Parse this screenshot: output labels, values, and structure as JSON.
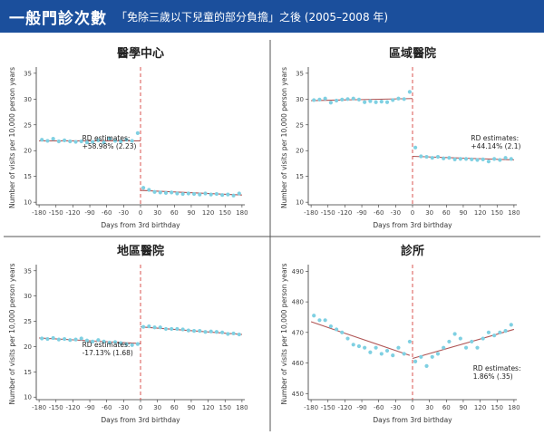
{
  "header": {
    "title": "一般門診次數",
    "subtitle": "「免除三歲以下兒童的部分負擔」之後 (2005–2008 年)"
  },
  "colors": {
    "header_bg": "#1b4f9c",
    "point": "#7fd0e2",
    "fit_line": "#b05555",
    "cutoff_line": "#d9534f",
    "divider": "#555555"
  },
  "chart_data": [
    {
      "type": "scatter",
      "title": "醫學中心",
      "xlabel": "Days from 3rd birthday",
      "ylabel": "Number of visits per 10,000 person years",
      "xlim": [
        -185,
        185
      ],
      "ylim": [
        9.5,
        35.5
      ],
      "xticks": [
        -180,
        -150,
        -120,
        -90,
        -60,
        -30,
        0,
        30,
        60,
        90,
        120,
        150,
        180
      ],
      "yticks": [
        10,
        15,
        20,
        25,
        30,
        35
      ],
      "cutoff": 0,
      "annotation": [
        "RD estimates:",
        "+58.98% (2.23)"
      ],
      "points": [
        [
          -175,
          22.1
        ],
        [
          -165,
          21.9
        ],
        [
          -155,
          22.3
        ],
        [
          -145,
          21.8
        ],
        [
          -135,
          22.0
        ],
        [
          -125,
          21.8
        ],
        [
          -115,
          21.7
        ],
        [
          -105,
          21.8
        ],
        [
          -95,
          21.6
        ],
        [
          -85,
          21.7
        ],
        [
          -75,
          22.0
        ],
        [
          -65,
          21.6
        ],
        [
          -55,
          22.3
        ],
        [
          -45,
          21.9
        ],
        [
          -35,
          21.8
        ],
        [
          -25,
          22.1
        ],
        [
          -15,
          21.9
        ],
        [
          -5,
          23.4
        ],
        [
          5,
          12.8
        ],
        [
          15,
          12.4
        ],
        [
          25,
          12.0
        ],
        [
          35,
          11.9
        ],
        [
          45,
          11.8
        ],
        [
          55,
          11.9
        ],
        [
          65,
          11.7
        ],
        [
          75,
          11.6
        ],
        [
          85,
          11.7
        ],
        [
          95,
          11.6
        ],
        [
          105,
          11.5
        ],
        [
          115,
          11.7
        ],
        [
          125,
          11.5
        ],
        [
          135,
          11.6
        ],
        [
          145,
          11.4
        ],
        [
          155,
          11.5
        ],
        [
          165,
          11.3
        ],
        [
          175,
          11.7
        ]
      ],
      "fit": [
        [
          [
            -180,
            21.9
          ],
          [
            0,
            21.9
          ]
        ],
        [
          [
            0,
            12.3
          ],
          [
            180,
            11.4
          ]
        ]
      ]
    },
    {
      "type": "scatter",
      "title": "區域醫院",
      "xlabel": "Days from 3rd birthday",
      "ylabel": "Number of visits per 10,000 person years",
      "xlim": [
        -185,
        185
      ],
      "ylim": [
        9.5,
        35.5
      ],
      "xticks": [
        -180,
        -150,
        -120,
        -90,
        -60,
        -30,
        0,
        30,
        60,
        90,
        120,
        150,
        180
      ],
      "yticks": [
        10,
        15,
        20,
        25,
        30,
        35
      ],
      "cutoff": 0,
      "annotation": [
        "RD estimates:",
        "+44.14% (2.1)"
      ],
      "points": [
        [
          -175,
          29.8
        ],
        [
          -165,
          29.9
        ],
        [
          -155,
          30.1
        ],
        [
          -145,
          29.3
        ],
        [
          -135,
          29.7
        ],
        [
          -125,
          29.9
        ],
        [
          -115,
          30.0
        ],
        [
          -105,
          30.1
        ],
        [
          -95,
          29.9
        ],
        [
          -85,
          29.4
        ],
        [
          -75,
          29.6
        ],
        [
          -65,
          29.4
        ],
        [
          -55,
          29.5
        ],
        [
          -45,
          29.4
        ],
        [
          -35,
          29.8
        ],
        [
          -25,
          30.1
        ],
        [
          -15,
          30.0
        ],
        [
          -5,
          31.4
        ],
        [
          5,
          20.6
        ],
        [
          15,
          18.9
        ],
        [
          25,
          18.8
        ],
        [
          35,
          18.6
        ],
        [
          45,
          18.8
        ],
        [
          55,
          18.5
        ],
        [
          65,
          18.6
        ],
        [
          75,
          18.3
        ],
        [
          85,
          18.4
        ],
        [
          95,
          18.4
        ],
        [
          105,
          18.3
        ],
        [
          115,
          18.2
        ],
        [
          125,
          18.3
        ],
        [
          135,
          17.9
        ],
        [
          145,
          18.4
        ],
        [
          155,
          18.2
        ],
        [
          165,
          18.6
        ],
        [
          175,
          18.4
        ]
      ],
      "fit": [
        [
          [
            -180,
            29.7
          ],
          [
            0,
            30.1
          ]
        ],
        [
          [
            0,
            18.9
          ],
          [
            180,
            18.2
          ]
        ]
      ]
    },
    {
      "type": "scatter",
      "title": "地區醫院",
      "xlabel": "Days from 3rd birthday",
      "ylabel": "Number of visits per 10,000 person years",
      "xlim": [
        -185,
        185
      ],
      "ylim": [
        9.5,
        35.5
      ],
      "xticks": [
        -180,
        -150,
        -120,
        -90,
        -60,
        -30,
        0,
        30,
        60,
        90,
        120,
        150,
        180
      ],
      "yticks": [
        10,
        15,
        20,
        25,
        30,
        35
      ],
      "cutoff": 0,
      "annotation": [
        "RD estimates:",
        "-17.13% (1.68)"
      ],
      "points": [
        [
          -175,
          21.6
        ],
        [
          -165,
          21.5
        ],
        [
          -155,
          21.7
        ],
        [
          -145,
          21.4
        ],
        [
          -135,
          21.5
        ],
        [
          -125,
          21.3
        ],
        [
          -115,
          21.4
        ],
        [
          -105,
          21.6
        ],
        [
          -95,
          21.2
        ],
        [
          -85,
          21.0
        ],
        [
          -75,
          21.3
        ],
        [
          -65,
          21.0
        ],
        [
          -55,
          20.8
        ],
        [
          -45,
          20.9
        ],
        [
          -35,
          20.7
        ],
        [
          -25,
          20.5
        ],
        [
          -15,
          20.3
        ],
        [
          -5,
          20.5
        ],
        [
          5,
          23.9
        ],
        [
          15,
          24.0
        ],
        [
          25,
          23.8
        ],
        [
          35,
          23.8
        ],
        [
          45,
          23.5
        ],
        [
          55,
          23.5
        ],
        [
          65,
          23.5
        ],
        [
          75,
          23.4
        ],
        [
          85,
          23.2
        ],
        [
          95,
          23.1
        ],
        [
          105,
          23.1
        ],
        [
          115,
          22.9
        ],
        [
          125,
          23.0
        ],
        [
          135,
          22.9
        ],
        [
          145,
          22.8
        ],
        [
          155,
          22.5
        ],
        [
          165,
          22.6
        ],
        [
          175,
          22.4
        ]
      ],
      "fit": [
        [
          [
            -180,
            21.7
          ],
          [
            0,
            20.6
          ]
        ],
        [
          [
            0,
            23.9
          ],
          [
            180,
            22.4
          ]
        ]
      ]
    },
    {
      "type": "scatter",
      "title": "診所",
      "xlabel": "Days from 3rd birthday",
      "ylabel": "Number of visits per 10,000 person years",
      "xlim": [
        -185,
        185
      ],
      "ylim": [
        448,
        491
      ],
      "xticks": [
        -180,
        -150,
        -120,
        -90,
        -60,
        -30,
        0,
        30,
        60,
        90,
        120,
        150,
        180
      ],
      "yticks": [
        450,
        460,
        470,
        480,
        490
      ],
      "cutoff": 0,
      "annotation": [
        "RD estimates:",
        "1.86% (.35)"
      ],
      "points": [
        [
          -175,
          475.5
        ],
        [
          -165,
          474
        ],
        [
          -155,
          474
        ],
        [
          -145,
          472
        ],
        [
          -135,
          471
        ],
        [
          -125,
          470
        ],
        [
          -115,
          468
        ],
        [
          -105,
          466
        ],
        [
          -95,
          465.5
        ],
        [
          -85,
          465
        ],
        [
          -75,
          463.5
        ],
        [
          -65,
          465
        ],
        [
          -55,
          463
        ],
        [
          -45,
          464
        ],
        [
          -35,
          462.5
        ],
        [
          -25,
          465
        ],
        [
          -15,
          463
        ],
        [
          -5,
          467
        ],
        [
          5,
          460.5
        ],
        [
          15,
          462
        ],
        [
          25,
          459
        ],
        [
          35,
          462
        ],
        [
          45,
          463
        ],
        [
          55,
          465
        ],
        [
          65,
          467
        ],
        [
          75,
          469.5
        ],
        [
          85,
          468
        ],
        [
          95,
          465
        ],
        [
          105,
          467
        ],
        [
          115,
          465
        ],
        [
          125,
          468
        ],
        [
          135,
          470
        ],
        [
          145,
          469
        ],
        [
          155,
          470
        ],
        [
          165,
          470.5
        ],
        [
          175,
          472.5
        ]
      ],
      "fit": [
        [
          [
            -180,
            473.5
          ],
          [
            -5,
            462.5
          ]
        ],
        [
          [
            0,
            461.5
          ],
          [
            180,
            471
          ]
        ]
      ]
    }
  ]
}
